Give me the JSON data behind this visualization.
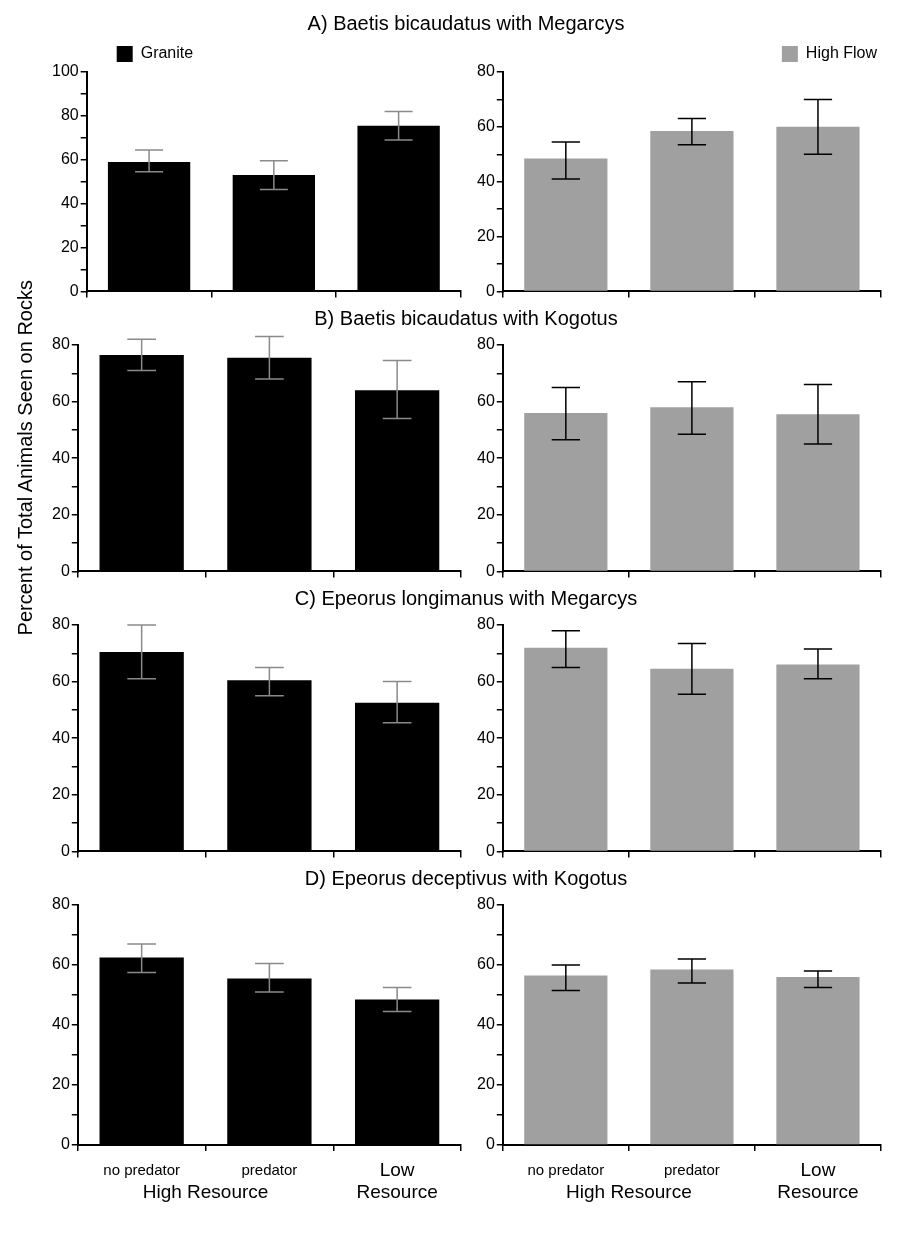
{
  "chart_data": [
    {
      "type": "bar",
      "title": "A)  Baetis bicaudatus with Megarcys",
      "categories": [
        null,
        null,
        null
      ],
      "tick_labels": "y",
      "legend": "top left",
      "ylim": [
        0,
        100
      ],
      "yticks": [
        0,
        {
          "value": 10,
          "label": null
        },
        20,
        {
          "value": 30,
          "label": null
        },
        40,
        {
          "value": 50,
          "label": null
        },
        60,
        {
          "value": 70,
          "label": null
        },
        80,
        {
          "value": 90,
          "label": null
        },
        100
      ],
      "series": [
        {
          "name": "Granite",
          "color": "#000000",
          "values": [
            59,
            53,
            75.5
          ],
          "errors": [
            [
              54.5,
              64.5
            ],
            [
              46.5,
              59.5
            ],
            [
              69,
              82
            ]
          ]
        }
      ]
    },
    {
      "type": "bar",
      "categories": [
        null,
        null,
        null
      ],
      "tick_labels": "y",
      "legend": "top right",
      "ylim": [
        0,
        80
      ],
      "yticks": [
        0,
        {
          "value": 10,
          "label": null
        },
        20,
        {
          "value": 30,
          "label": null
        },
        40,
        {
          "value": 50,
          "label": null
        },
        60,
        {
          "value": 70,
          "label": null
        },
        80
      ],
      "series": [
        {
          "name": "High Flow",
          "color": "#a0a0a0",
          "values": [
            48.5,
            58.5,
            60
          ],
          "errors": [
            [
              41,
              54.5
            ],
            [
              53.5,
              63
            ],
            [
              50,
              70
            ]
          ]
        }
      ]
    },
    {
      "type": "bar",
      "title": "B)  Baetis bicaudatus with Kogotus",
      "ylabel": "Percent of Total Animals Seen on Rocks",
      "categories": [
        null,
        null,
        null
      ],
      "tick_labels": "y",
      "ylim": [
        0,
        80
      ],
      "yticks": [
        0,
        {
          "value": 10,
          "label": null
        },
        20,
        {
          "value": 30,
          "label": null
        },
        40,
        {
          "value": 50,
          "label": null
        },
        60,
        {
          "value": 70,
          "label": null
        },
        80
      ],
      "series": [
        {
          "color": "#000000",
          "values": [
            76.5,
            75.5,
            64
          ],
          "errors": [
            [
              71,
              82
            ],
            [
              68,
              83
            ],
            [
              54,
              74.5
            ]
          ]
        }
      ]
    },
    {
      "type": "bar",
      "categories": [
        null,
        null,
        null
      ],
      "tick_labels": "y",
      "ylim": [
        0,
        80
      ],
      "yticks": [
        0,
        {
          "value": 10,
          "label": null
        },
        20,
        {
          "value": 30,
          "label": null
        },
        40,
        {
          "value": 50,
          "label": null
        },
        60,
        {
          "value": 70,
          "label": null
        },
        80
      ],
      "series": [
        {
          "color": "#a0a0a0",
          "values": [
            56,
            58,
            55.5
          ],
          "errors": [
            [
              46.5,
              65
            ],
            [
              48.5,
              67
            ],
            [
              45,
              66
            ]
          ]
        }
      ]
    },
    {
      "type": "bar",
      "title": "C)  Epeorus longimanus with Megarcys",
      "categories": [
        null,
        null,
        null
      ],
      "tick_labels": "y",
      "ylim": [
        0,
        80
      ],
      "yticks": [
        0,
        {
          "value": 10,
          "label": null
        },
        20,
        {
          "value": 30,
          "label": null
        },
        40,
        {
          "value": 50,
          "label": null
        },
        60,
        {
          "value": 70,
          "label": null
        },
        80
      ],
      "series": [
        {
          "color": "#000000",
          "values": [
            70.5,
            60.5,
            52.5
          ],
          "errors": [
            [
              61,
              80
            ],
            [
              55,
              65
            ],
            [
              45.5,
              60
            ]
          ]
        }
      ]
    },
    {
      "type": "bar",
      "categories": [
        null,
        null,
        null
      ],
      "tick_labels": "y",
      "ylim": [
        0,
        80
      ],
      "yticks": [
        0,
        {
          "value": 10,
          "label": null
        },
        20,
        {
          "value": 30,
          "label": null
        },
        40,
        {
          "value": 50,
          "label": null
        },
        60,
        {
          "value": 70,
          "label": null
        },
        80
      ],
      "series": [
        {
          "color": "#a0a0a0",
          "values": [
            72,
            64.5,
            66
          ],
          "errors": [
            [
              65,
              78
            ],
            [
              55.5,
              73.5
            ],
            [
              61,
              71.5
            ]
          ]
        }
      ]
    },
    {
      "type": "bar",
      "title": "D)  Epeorus deceptivus with Kogotus",
      "categories": [
        "no predator",
        "predator",
        "Low Resource"
      ],
      "xlabel": "High Resource",
      "ylim": [
        0,
        80
      ],
      "yticks": [
        0,
        {
          "value": 10,
          "label": null
        },
        20,
        {
          "value": 30,
          "label": null
        },
        40,
        {
          "value": 50,
          "label": null
        },
        60,
        {
          "value": 70,
          "label": null
        },
        80
      ],
      "series": [
        {
          "color": "#000000",
          "values": [
            62.5,
            55.5,
            48.5
          ],
          "errors": [
            [
              57.5,
              67
            ],
            [
              51,
              60.5
            ],
            [
              44.5,
              52.5
            ]
          ]
        }
      ]
    },
    {
      "type": "bar",
      "categories": [
        "no predator",
        "predator",
        "Low Resource"
      ],
      "xlabel": "High Resource",
      "ylim": [
        0,
        80
      ],
      "yticks": [
        0,
        {
          "value": 10,
          "label": null
        },
        20,
        {
          "value": 30,
          "label": null
        },
        40,
        {
          "value": 50,
          "label": null
        },
        60,
        {
          "value": 70,
          "label": null
        },
        80
      ],
      "series": [
        {
          "color": "#a0a0a0",
          "values": [
            56.5,
            58.5,
            56
          ],
          "errors": [
            [
              51.5,
              60
            ],
            [
              54,
              62
            ],
            [
              52.5,
              58
            ]
          ]
        }
      ]
    }
  ]
}
